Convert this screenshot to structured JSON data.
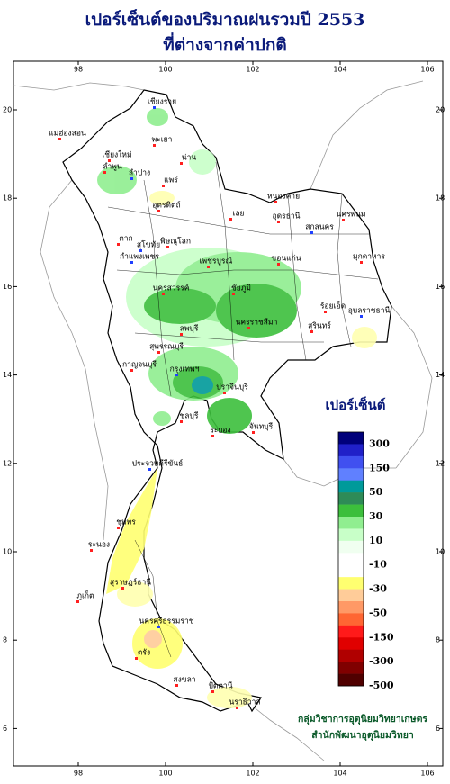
{
  "title": [
    "เปอร์เซ็นต์ของปริมาณฝนรวมปี 2553",
    "ที่ต่างจากค่าปกติ"
  ],
  "map": {
    "xticks": [
      98,
      100,
      102,
      104,
      106
    ],
    "yticks": [
      6,
      8,
      10,
      12,
      14,
      16,
      18,
      20
    ],
    "places": [
      "เชียงราย",
      "พะเยา",
      "เชียงใหม่",
      "แม่ฮ่องสอน",
      "ลำพูน",
      "ลำปาง",
      "แพร่",
      "น่าน",
      "อุตรดิตถ์",
      "ตาก",
      "สุโขทัย",
      "พิษณุโลก",
      "เลย",
      "หนองคาย",
      "อุดรธานี",
      "สกลนคร",
      "นครพนม",
      "มุกดาหาร",
      "ขอนแก่น",
      "เพชรบูรณ์",
      "กำแพงเพชร",
      "นครสวรรค์",
      "ชัยภูมิ",
      "ลพบุรี",
      "นครราชสีมา",
      "อุบลราชธานี",
      "ร้อยเอ็ด",
      "สุรินทร์",
      "สุพรรณบุรี",
      "กาญจนบุรี",
      "กรุงเทพฯ",
      "ปราจีนบุรี",
      "ชลบุรี",
      "ระยอง",
      "จันทบุรี",
      "ประจวบคีรีขันธ์",
      "ชุมพร",
      "ระนอง",
      "สุราษฎร์ธานี",
      "ภูเก็ต",
      "นครศรีธรรมราช",
      "ตรัง",
      "สงขลา",
      "ปัตตานี",
      "นราธิวาส"
    ]
  },
  "legend": {
    "title": "เปอร์เซ็นต์",
    "colors": [
      "#00007a",
      "#2020c8",
      "#4050f0",
      "#6080ff",
      "#009a9a",
      "#2e8b57",
      "#3cbf3c",
      "#90ee90",
      "#c8ffc8",
      "#f0fff0",
      "#ffffff",
      "#ffffff",
      "#ffff70",
      "#ffcc99",
      "#ff9966",
      "#ff6633",
      "#ff1a1a",
      "#e00000",
      "#b00000",
      "#800000",
      "#500000"
    ],
    "labels": [
      300,
      150,
      50,
      30,
      10,
      -10,
      -30,
      -50,
      -150,
      -300,
      -500
    ]
  },
  "credit": [
    "กลุ่มวิชาการอุตุนิยมวิทยาเกษตร",
    "สำนักพัฒนาอุตุนิยมวิทยา"
  ]
}
